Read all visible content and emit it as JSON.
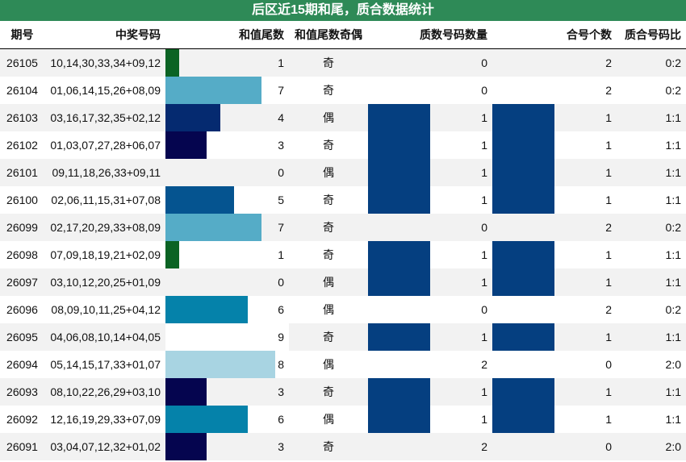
{
  "title": "后区近15期和尾，质合数据统计",
  "headers": {
    "period": "期号",
    "numbers": "中奖号码",
    "tail": "和值尾数",
    "parity": "和值尾数奇偶",
    "prime": "质数号码数量",
    "composite": "合号个数",
    "ratio": "质合号码比"
  },
  "colors": {
    "title_bg": "#2e8a57",
    "tail_bar_by_value": {
      "1": "#0b6324",
      "3": "#05054f",
      "4": "#052a70",
      "5": "#055490",
      "6": "#0582aa",
      "7": "#55acc7",
      "8": "#a8d4e2",
      "9": "#ffffff"
    },
    "prime_bar": "#053f80",
    "composite_bar": "#053f80"
  },
  "tail_max": 9,
  "rows": [
    {
      "period": "26105",
      "numbers": "10,14,30,33,34+09,12",
      "tail": 1,
      "parity": "奇",
      "prime": 0,
      "composite": 2,
      "ratio": "0:2"
    },
    {
      "period": "26104",
      "numbers": "01,06,14,15,26+08,09",
      "tail": 7,
      "parity": "奇",
      "prime": 0,
      "composite": 2,
      "ratio": "0:2"
    },
    {
      "period": "26103",
      "numbers": "03,16,17,32,35+02,12",
      "tail": 4,
      "parity": "偶",
      "prime": 1,
      "composite": 1,
      "ratio": "1:1"
    },
    {
      "period": "26102",
      "numbers": "01,03,07,27,28+06,07",
      "tail": 3,
      "parity": "奇",
      "prime": 1,
      "composite": 1,
      "ratio": "1:1"
    },
    {
      "period": "26101",
      "numbers": "09,11,18,26,33+09,11",
      "tail": 0,
      "parity": "偶",
      "prime": 1,
      "composite": 1,
      "ratio": "1:1"
    },
    {
      "period": "26100",
      "numbers": "02,06,11,15,31+07,08",
      "tail": 5,
      "parity": "奇",
      "prime": 1,
      "composite": 1,
      "ratio": "1:1"
    },
    {
      "period": "26099",
      "numbers": "02,17,20,29,33+08,09",
      "tail": 7,
      "parity": "奇",
      "prime": 0,
      "composite": 2,
      "ratio": "0:2"
    },
    {
      "period": "26098",
      "numbers": "07,09,18,19,21+02,09",
      "tail": 1,
      "parity": "奇",
      "prime": 1,
      "composite": 1,
      "ratio": "1:1"
    },
    {
      "period": "26097",
      "numbers": "03,10,12,20,25+01,09",
      "tail": 0,
      "parity": "偶",
      "prime": 1,
      "composite": 1,
      "ratio": "1:1"
    },
    {
      "period": "26096",
      "numbers": "08,09,10,11,25+04,12",
      "tail": 6,
      "parity": "偶",
      "prime": 0,
      "composite": 2,
      "ratio": "0:2"
    },
    {
      "period": "26095",
      "numbers": "04,06,08,10,14+04,05",
      "tail": 9,
      "parity": "奇",
      "prime": 1,
      "composite": 1,
      "ratio": "1:1"
    },
    {
      "period": "26094",
      "numbers": "05,14,15,17,33+01,07",
      "tail": 8,
      "parity": "偶",
      "prime": 2,
      "composite": 0,
      "ratio": "2:0"
    },
    {
      "period": "26093",
      "numbers": "08,10,22,26,29+03,10",
      "tail": 3,
      "parity": "奇",
      "prime": 1,
      "composite": 1,
      "ratio": "1:1"
    },
    {
      "period": "26092",
      "numbers": "12,16,19,29,33+07,09",
      "tail": 6,
      "parity": "偶",
      "prime": 1,
      "composite": 1,
      "ratio": "1:1"
    },
    {
      "period": "26091",
      "numbers": "03,04,07,12,32+01,02",
      "tail": 3,
      "parity": "奇",
      "prime": 2,
      "composite": 0,
      "ratio": "2:0"
    }
  ]
}
